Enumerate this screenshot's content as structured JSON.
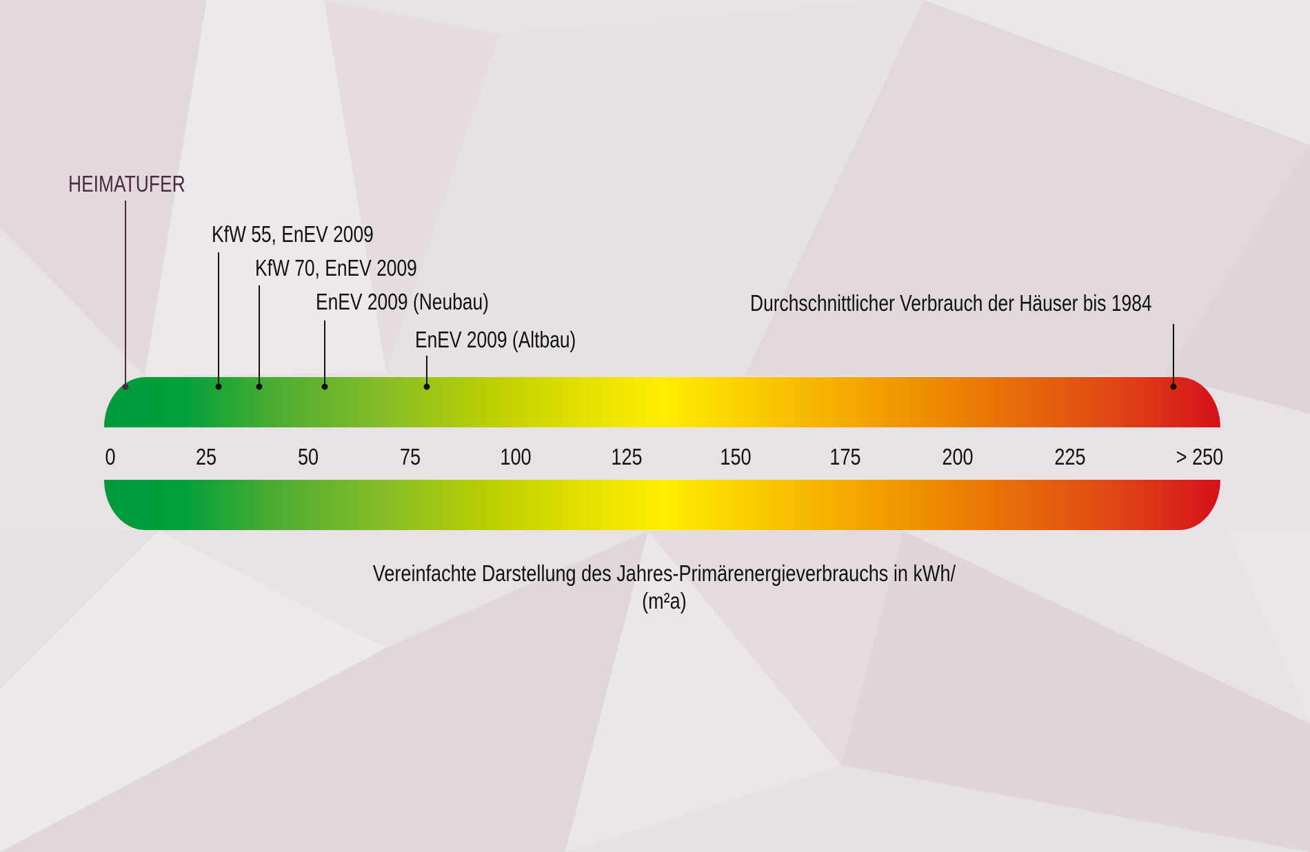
{
  "colors": {
    "brand": "#4a2a3c",
    "line": "#111111",
    "green": "#00a03a",
    "yellow": "#ffed00",
    "red": "#d6101a"
  },
  "chart_data": {
    "type": "scale",
    "tick_labels": [
      "0",
      "25",
      "50",
      "75",
      "100",
      "125",
      "150",
      "175",
      "200",
      "225",
      "> 250"
    ],
    "tick_values": [
      0,
      25,
      50,
      75,
      100,
      125,
      150,
      175,
      200,
      225,
      250
    ],
    "xlim": [
      0,
      250
    ],
    "markers": [
      {
        "label": "HEIMATUFER",
        "value": 4,
        "highlight": true
      },
      {
        "label": "KfW 55, EnEV 2009",
        "value": 28
      },
      {
        "label": "KfW 70, EnEV 2009",
        "value": 38
      },
      {
        "label": "EnEV 2009 (Neubau)",
        "value": 54
      },
      {
        "label": "EnEV 2009 (Altbau)",
        "value": 79
      },
      {
        "label": "Durchschnittlicher Verbrauch der Häuser bis 1984",
        "value": 245
      }
    ],
    "caption_line1": "Vereinfachte Darstellung des Jahres-Primärenergieverbrauchs in kWh/",
    "caption_line2": "(m²a)",
    "color_scale": "green-yellow-red"
  }
}
